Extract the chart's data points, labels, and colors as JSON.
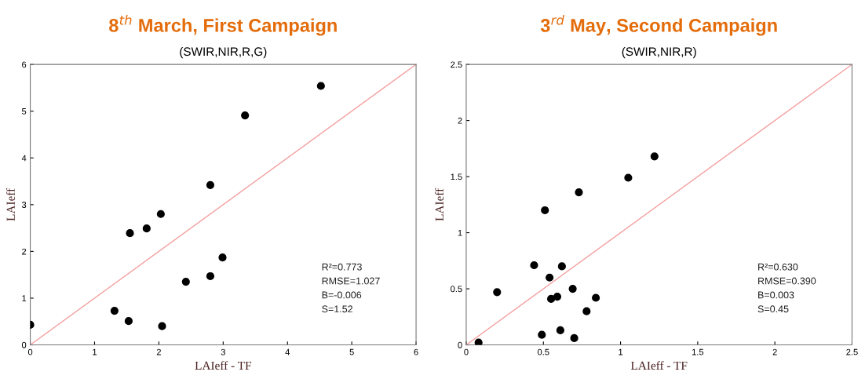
{
  "chart_data": [
    {
      "type": "scatter",
      "title": "8$^{th}$ March, First Campaign",
      "subtitle": "(SWIR,NIR,R,G)",
      "xlabel": "LAIeff - TF",
      "ylabel": "LAIeff",
      "xlim": [
        0,
        6
      ],
      "ylim": [
        0,
        6
      ],
      "xticks": [
        0,
        1,
        2,
        3,
        4,
        5,
        6
      ],
      "yticks": [
        0,
        1,
        2,
        3,
        4,
        5,
        6
      ],
      "grid": false,
      "legend": false,
      "series": [
        {
          "marker": "circle",
          "color": "#000000",
          "x": [
            0,
            1.31,
            1.53,
            2.05,
            1.55,
            1.81,
            2.03,
            2.8,
            3.34,
            4.52,
            2.42,
            2.8,
            2.99
          ],
          "values": [
            0.43,
            0.73,
            0.51,
            0.4,
            2.39,
            2.49,
            2.8,
            3.42,
            4.91,
            5.54,
            1.35,
            1.47,
            1.87
          ]
        },
        {
          "type": "line",
          "color": "#f4a0a0",
          "x": [
            0,
            6
          ],
          "values": [
            0,
            6
          ],
          "line_style": "solid"
        }
      ],
      "annotations": [
        "R²=0.773",
        "RMSE=1.027",
        "B=-0.006",
        "S=1.52"
      ]
    },
    {
      "type": "scatter",
      "title": "3$^{rd}$ May, Second Campaign",
      "subtitle": "(SWIR,NIR,R)",
      "xlabel": "LAIeff - TF",
      "ylabel": "LAIeff",
      "xlim": [
        0,
        2.5
      ],
      "ylim": [
        0,
        2.5
      ],
      "xticks": [
        0,
        0.5,
        1,
        1.5,
        2,
        2.5
      ],
      "yticks": [
        0,
        0.5,
        1,
        1.5,
        2,
        2.5
      ],
      "grid": false,
      "legend": false,
      "series": [
        {
          "marker": "circle",
          "color": "#000000",
          "x": [
            0.08,
            0.2,
            0.44,
            0.49,
            0.51,
            0.54,
            0.55,
            0.59,
            0.61,
            0.62,
            0.69,
            0.7,
            0.73,
            0.78,
            0.84,
            1.05,
            1.22
          ],
          "values": [
            0.02,
            0.47,
            0.71,
            0.09,
            1.2,
            0.6,
            0.41,
            0.43,
            0.13,
            0.7,
            0.5,
            0.06,
            1.36,
            0.3,
            0.42,
            1.49,
            1.68
          ]
        },
        {
          "type": "line",
          "color": "#f4a0a0",
          "x": [
            0,
            2.5
          ],
          "values": [
            0,
            2.5
          ],
          "line_style": "solid"
        }
      ],
      "annotations": [
        "R²=0.630",
        "RMSE=0.390",
        "B=0.003",
        "S=0.45"
      ]
    }
  ]
}
